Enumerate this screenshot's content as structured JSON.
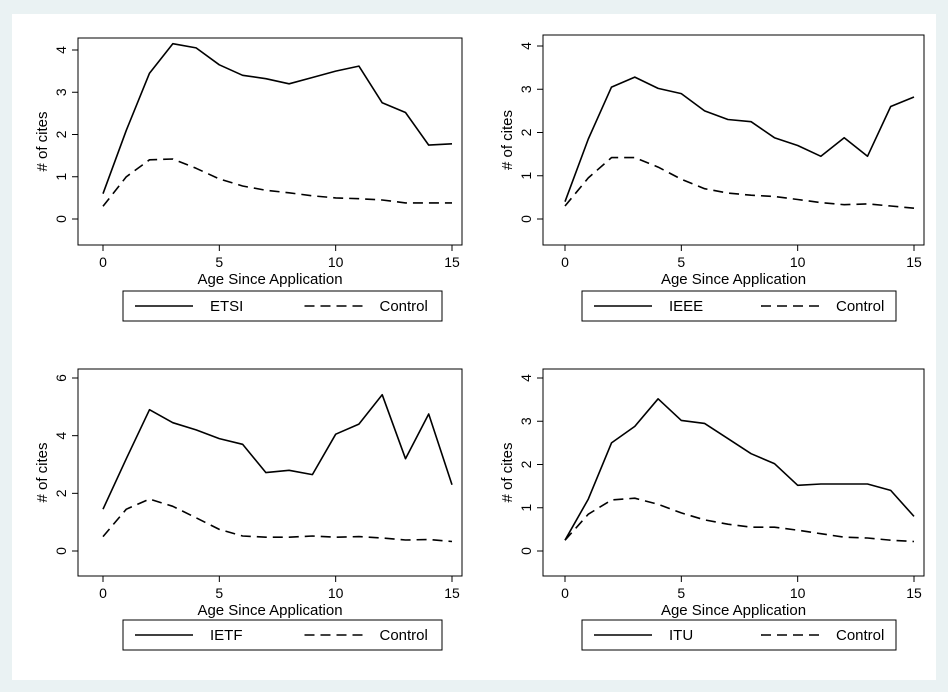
{
  "chart_data": [
    {
      "type": "line",
      "xlabel": "Age Since Application",
      "ylabel": "# of cites",
      "xlim": [
        0,
        15
      ],
      "ylim": [
        0,
        4
      ],
      "xticks": [
        0,
        5,
        10,
        15
      ],
      "yticks": [
        0,
        1,
        2,
        3,
        4
      ],
      "legend_position": "bottom",
      "x": [
        0,
        1,
        2,
        3,
        4,
        5,
        6,
        7,
        8,
        9,
        10,
        11,
        12,
        13,
        14,
        15
      ],
      "series": [
        {
          "name": "ETSI",
          "style": "solid",
          "values": [
            0.6,
            2.1,
            3.45,
            4.15,
            4.05,
            3.65,
            3.4,
            3.32,
            3.2,
            3.35,
            3.5,
            3.62,
            2.75,
            2.52,
            1.75,
            1.78
          ]
        },
        {
          "name": "Control",
          "style": "dashed",
          "values": [
            0.3,
            1.0,
            1.4,
            1.42,
            1.2,
            0.95,
            0.78,
            0.68,
            0.62,
            0.55,
            0.5,
            0.48,
            0.45,
            0.38,
            0.38,
            0.38
          ]
        }
      ]
    },
    {
      "type": "line",
      "xlabel": "Age Since Application",
      "ylabel": "# of cites",
      "xlim": [
        0,
        15
      ],
      "ylim": [
        0,
        4
      ],
      "xticks": [
        0,
        5,
        10,
        15
      ],
      "yticks": [
        0,
        1,
        2,
        3,
        4
      ],
      "legend_position": "bottom",
      "x": [
        0,
        1,
        2,
        3,
        4,
        5,
        6,
        7,
        8,
        9,
        10,
        11,
        12,
        13,
        14,
        15
      ],
      "series": [
        {
          "name": "IEEE",
          "style": "solid",
          "values": [
            0.4,
            1.85,
            3.05,
            3.28,
            3.02,
            2.9,
            2.5,
            2.3,
            2.25,
            1.88,
            1.7,
            1.45,
            1.88,
            1.45,
            2.6,
            2.82
          ]
        },
        {
          "name": "Control",
          "style": "dashed",
          "values": [
            0.3,
            0.95,
            1.42,
            1.42,
            1.2,
            0.92,
            0.7,
            0.6,
            0.55,
            0.52,
            0.45,
            0.38,
            0.33,
            0.35,
            0.3,
            0.25
          ]
        }
      ]
    },
    {
      "type": "line",
      "xlabel": "Age Since Application",
      "ylabel": "# of cites",
      "xlim": [
        0,
        15
      ],
      "ylim": [
        0,
        6
      ],
      "xticks": [
        0,
        5,
        10,
        15
      ],
      "yticks": [
        0,
        2,
        4,
        6
      ],
      "legend_position": "bottom",
      "x": [
        0,
        1,
        2,
        3,
        4,
        5,
        6,
        7,
        8,
        9,
        10,
        11,
        12,
        13,
        14,
        15
      ],
      "series": [
        {
          "name": "IETF",
          "style": "solid",
          "values": [
            1.45,
            3.2,
            4.9,
            4.45,
            4.2,
            3.9,
            3.7,
            2.72,
            2.8,
            2.65,
            4.05,
            4.4,
            5.42,
            3.2,
            4.75,
            2.3
          ]
        },
        {
          "name": "Control",
          "style": "dashed",
          "values": [
            0.5,
            1.45,
            1.8,
            1.55,
            1.15,
            0.75,
            0.52,
            0.48,
            0.48,
            0.52,
            0.48,
            0.5,
            0.45,
            0.38,
            0.4,
            0.33
          ]
        }
      ]
    },
    {
      "type": "line",
      "xlabel": "Age Since Application",
      "ylabel": "# of cites",
      "xlim": [
        0,
        15
      ],
      "ylim": [
        0,
        4
      ],
      "xticks": [
        0,
        5,
        10,
        15
      ],
      "yticks": [
        0,
        1,
        2,
        3,
        4
      ],
      "legend_position": "bottom",
      "x": [
        0,
        1,
        2,
        3,
        4,
        5,
        6,
        7,
        8,
        9,
        10,
        11,
        12,
        13,
        14,
        15
      ],
      "series": [
        {
          "name": "ITU",
          "style": "solid",
          "values": [
            0.25,
            1.2,
            2.5,
            2.88,
            3.52,
            3.02,
            2.95,
            2.6,
            2.25,
            2.02,
            1.52,
            1.55,
            1.55,
            1.55,
            1.4,
            0.8
          ]
        },
        {
          "name": "Control",
          "style": "dashed",
          "values": [
            0.25,
            0.85,
            1.18,
            1.22,
            1.08,
            0.88,
            0.72,
            0.62,
            0.55,
            0.55,
            0.48,
            0.4,
            0.32,
            0.3,
            0.25,
            0.22
          ]
        }
      ]
    }
  ]
}
